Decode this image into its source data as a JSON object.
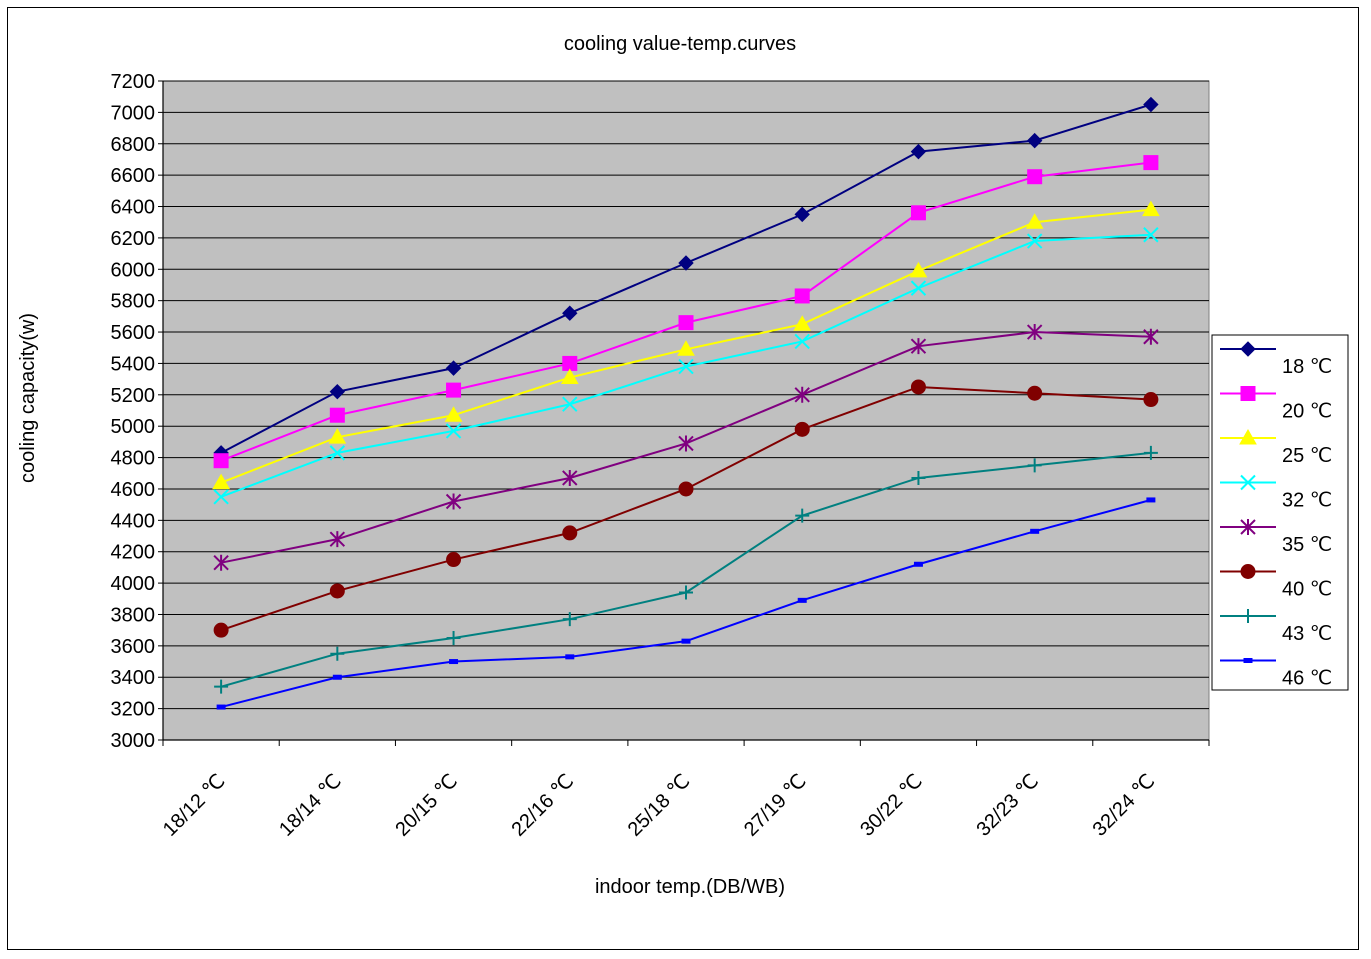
{
  "chart_data": {
    "type": "line",
    "title": "cooling value-temp.curves",
    "xlabel": "indoor temp.(DB/WB)",
    "ylabel": "cooling capacity(w)",
    "ylim": [
      3000,
      7200
    ],
    "y_ticks": [
      3000,
      3200,
      3400,
      3600,
      3800,
      4000,
      4200,
      4400,
      4600,
      4800,
      5000,
      5200,
      5400,
      5600,
      5800,
      6000,
      6200,
      6400,
      6600,
      6800,
      7000,
      7200
    ],
    "grid": true,
    "legend_position": "right",
    "plot_background": "#c0c0c0",
    "categories": [
      "18/12 ℃",
      "18/14 ℃",
      "20/15 ℃",
      "22/16 ℃",
      "25/18 ℃",
      "27/19 ℃",
      "30/22 ℃",
      "32/23 ℃",
      "32/24 ℃"
    ],
    "series": [
      {
        "name": "18 ℃",
        "color": "#000080",
        "marker": "diamond",
        "values": [
          4830,
          5220,
          5370,
          5720,
          6040,
          6350,
          6750,
          6820,
          7050
        ]
      },
      {
        "name": "20 ℃",
        "color": "#ff00ff",
        "marker": "square",
        "values": [
          4780,
          5070,
          5230,
          5400,
          5660,
          5830,
          6360,
          6590,
          6680
        ]
      },
      {
        "name": "25 ℃",
        "color": "#ffff00",
        "marker": "triangle",
        "values": [
          4640,
          4930,
          5070,
          5310,
          5490,
          5650,
          5990,
          6300,
          6380
        ]
      },
      {
        "name": "32 ℃",
        "color": "#00ffff",
        "marker": "x",
        "values": [
          4550,
          4830,
          4970,
          5140,
          5380,
          5540,
          5880,
          6180,
          6220
        ]
      },
      {
        "name": "35 ℃",
        "color": "#800080",
        "marker": "star",
        "values": [
          4130,
          4280,
          4520,
          4670,
          4890,
          5200,
          5510,
          5600,
          5570
        ]
      },
      {
        "name": "40 ℃",
        "color": "#800000",
        "marker": "circle",
        "values": [
          3700,
          3950,
          4150,
          4320,
          4600,
          4980,
          5250,
          5210,
          5170
        ]
      },
      {
        "name": "43 ℃",
        "color": "#008080",
        "marker": "plus",
        "values": [
          3340,
          3550,
          3650,
          3770,
          3940,
          4430,
          4670,
          4750,
          4830
        ]
      },
      {
        "name": "46 ℃",
        "color": "#0000ff",
        "marker": "dash",
        "values": [
          3210,
          3400,
          3500,
          3530,
          3630,
          3890,
          4120,
          4330,
          4530
        ]
      }
    ]
  }
}
